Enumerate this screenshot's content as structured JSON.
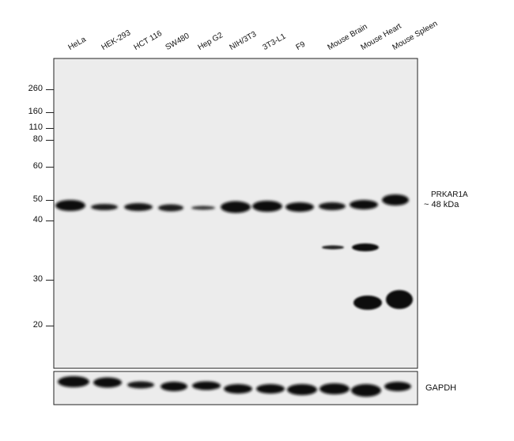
{
  "lanes": [
    "HeLa",
    "HEK-293",
    "HCT 116",
    "SW480",
    "Hep G2",
    "NIH/3T3",
    "3T3-L1",
    "F9",
    "Mouse Brain",
    "Mouse Heart",
    "Mouse Spleen"
  ],
  "markers": [
    "260",
    "160",
    "110",
    "80",
    "60",
    "50",
    "40",
    "30",
    "20"
  ],
  "target": {
    "name": "PRKAR1A",
    "size": "~ 48 kDa"
  },
  "loading_control": "GAPDH"
}
